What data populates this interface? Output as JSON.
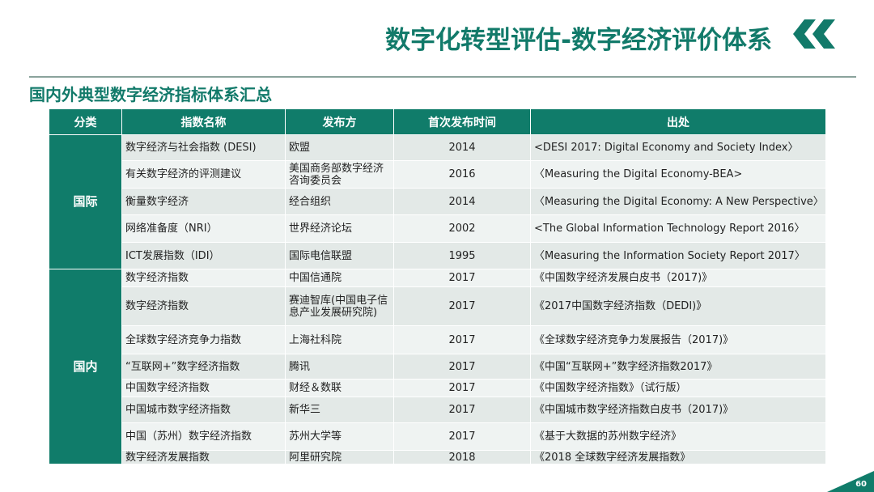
{
  "header": {
    "title": "数字化转型评估-数字经济评价体系",
    "subtitle": "国内外典型数字经济指标体系汇总"
  },
  "table": {
    "columns": [
      "分类",
      "指数名称",
      "发布方",
      "首次发布时间",
      "出处"
    ],
    "groups": [
      {
        "name": "国际",
        "rows": [
          {
            "name": "数字经济与社会指数 (DESI)",
            "publisher": "欧盟",
            "year": "2014",
            "source": "<DESI 2017: Digital Economy and Society Index〉"
          },
          {
            "name": "有关数字经济的评测建议",
            "publisher": "美国商务部数字经济咨询委员会",
            "year": "2016",
            "source": "〈Measuring the Digital Economy-BEA>"
          },
          {
            "name": "衡量数字经济",
            "publisher": "经合组织",
            "year": "2014",
            "source": "〈Measuring the Digital Economy: A New Perspective〉"
          },
          {
            "name": "网络准备度（NRI）",
            "publisher": "世界经济论坛",
            "year": "2002",
            "source": "<The Global Information Technology Report 2016〉"
          },
          {
            "name": "ICT发展指数（IDI）",
            "publisher": "国际电信联盟",
            "year": "1995",
            "source": "〈Measuring the Information Society Report  2017〉"
          }
        ]
      },
      {
        "name": "国内",
        "rows": [
          {
            "name": "数字经济指数",
            "publisher": "中国信通院",
            "year": "2017",
            "source": "《中国数字经济发展白皮书（2017)》"
          },
          {
            "name": "数字经济指数",
            "publisher": "赛迪智库(中国电子信息产业发展研究院)",
            "year": "2017",
            "source": "《2017中国数字经济指数（DEDI)》"
          },
          {
            "name": "全球数字经济竞争力指数",
            "publisher": "上海社科院",
            "year": "2017",
            "source": "《全球数字经济竞争力发展报告（2017)》"
          },
          {
            "name": "“互联网+”数字经济指数",
            "publisher": "腾讯",
            "year": "2017",
            "source": "《中国“互联网+”数字经济指数2017》"
          },
          {
            "name": "中国数字经济指数",
            "publisher": "财经＆数联",
            "year": "2017",
            "source": "《中国数字经济指数》（试行版）"
          },
          {
            "name": "中国城市数字经济指数",
            "publisher": "新华三",
            "year": "2017",
            "source": "《中国城市数字经济指数白皮书（2017)》"
          },
          {
            "name": "中国（苏州）数字经济指数",
            "publisher": "苏州大学等",
            "year": "2017",
            "source": "《基于大数据的苏州数字经济》"
          },
          {
            "name": "数字经济发展指数",
            "publisher": "阿里研究院",
            "year": "2018",
            "source": "《2018 全球数字经济发展指数》"
          }
        ]
      }
    ]
  },
  "footer": {
    "page_number": "60"
  },
  "colors": {
    "accent": "#107c6a",
    "row_odd": "#e3e9e7",
    "row_even": "#eff3f2"
  },
  "icons": {
    "header_decoration": "double-chevron-left-icon",
    "page_badge": "corner-triangle-icon"
  }
}
